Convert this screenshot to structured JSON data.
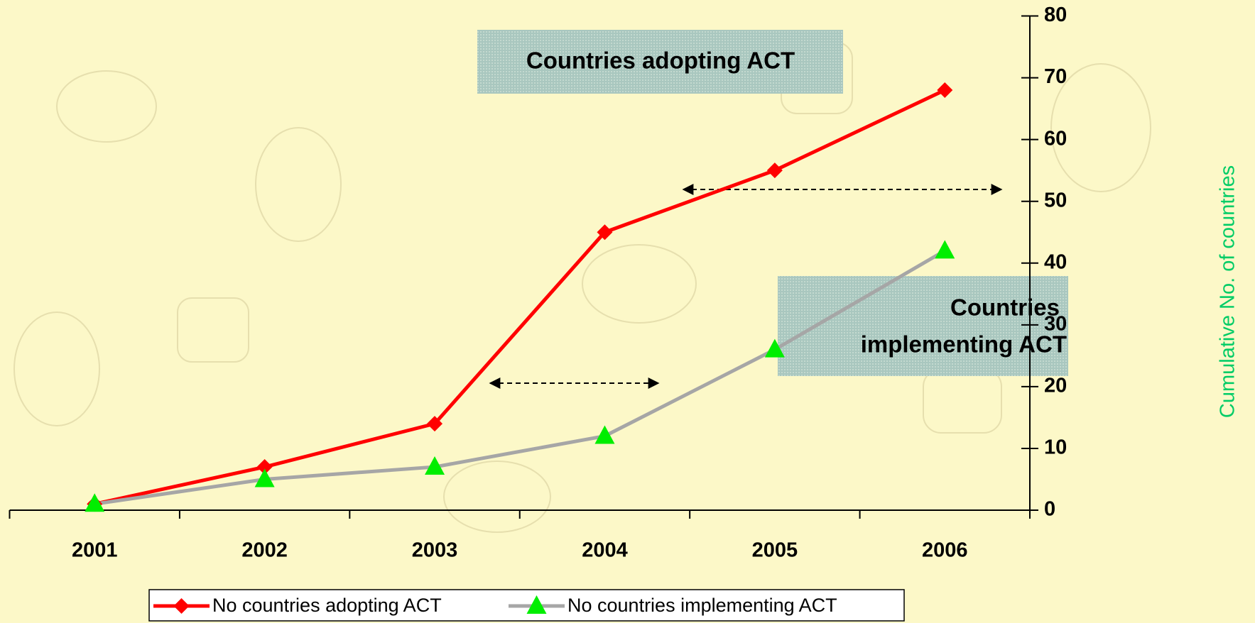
{
  "chart_data": {
    "type": "line",
    "categories": [
      "2001",
      "2002",
      "2003",
      "2004",
      "2005",
      "2006"
    ],
    "series": [
      {
        "name": "No countries adopting ACT",
        "color": "#ff0000",
        "marker": "diamond",
        "marker_color": "#ff0000",
        "values": [
          1,
          7,
          14,
          45,
          55,
          68
        ]
      },
      {
        "name": "No countries implementing ACT",
        "color": "#a6a6a6",
        "marker": "triangle",
        "marker_color": "#00ee00",
        "values": [
          1,
          5,
          7,
          12,
          26,
          42
        ]
      }
    ],
    "ylim": [
      0,
      80
    ],
    "yticks": [
      0,
      10,
      20,
      30,
      40,
      50,
      60,
      70,
      80
    ],
    "y_label": "Cumulative No. of countries",
    "annotations": [
      [
        "Countries adopting ACT"
      ],
      [
        "Countries",
        "implementing ACT"
      ]
    ],
    "legend": "bottom"
  }
}
